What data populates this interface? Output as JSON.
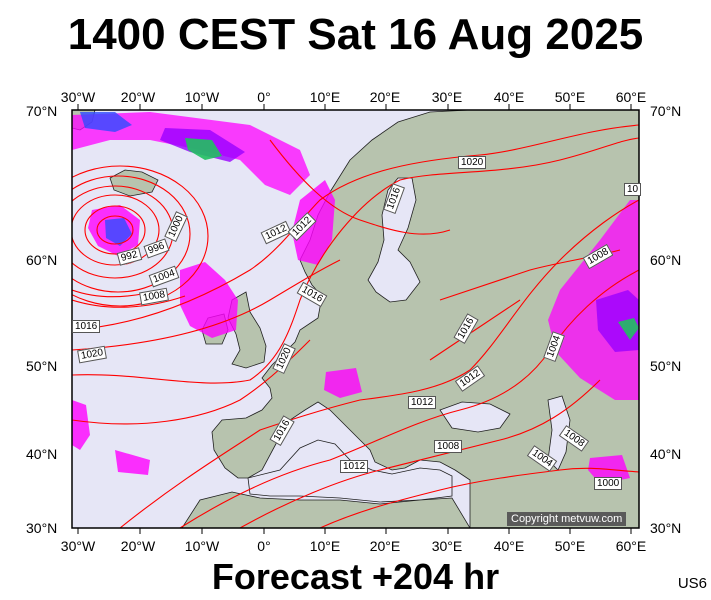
{
  "title": "1400 CEST Sat 16 Aug 2025",
  "subtitle": "Forecast +204 hr",
  "code": "US6",
  "copyright": "Copyright metvuw.com",
  "lon_labels": [
    "30°W",
    "20°W",
    "10°W",
    "0°",
    "10°E",
    "20°E",
    "30°E",
    "40°E",
    "50°E",
    "60°E"
  ],
  "lat_labels": [
    "70°N",
    "60°N",
    "50°N",
    "40°N",
    "30°N"
  ],
  "isobar_labels": [
    "1020",
    "1016",
    "1012",
    "1000",
    "996",
    "992",
    "1004",
    "1008",
    "1016",
    "1020",
    "1016",
    "1012",
    "1016",
    "1020",
    "1012",
    "1012",
    "1016",
    "1012",
    "1008",
    "1004",
    "1008",
    "1004",
    "1000",
    "1008",
    "10"
  ],
  "colors": {
    "sea": "#e6e6f6",
    "land": "#b8c4b0",
    "isobar": "#ff0000",
    "precip_magenta": "#ff00ff",
    "precip_purple": "#9a00ff",
    "precip_blue": "#2e4cff",
    "precip_green": "#20c060"
  }
}
